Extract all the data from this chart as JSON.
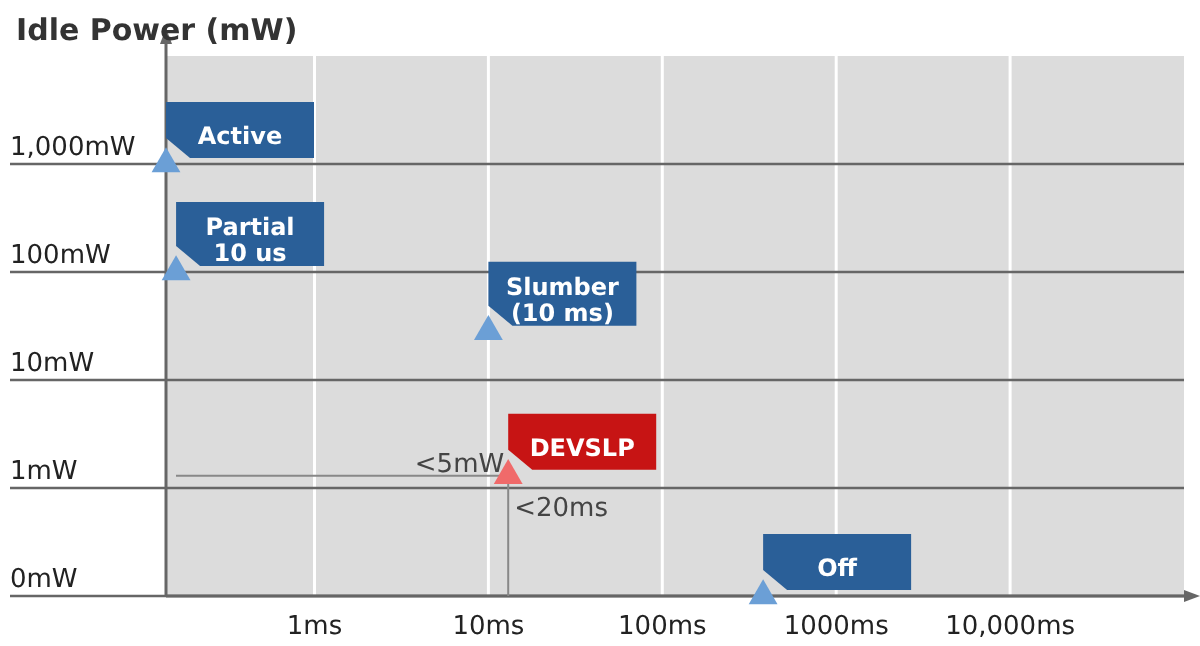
{
  "chart_data": {
    "type": "scatter",
    "title": "Idle Power (mW)",
    "log": "xy",
    "grid": true,
    "marker": "triangle",
    "xlim": [
      0.14,
      100000
    ],
    "xticks": [
      {
        "value": 1,
        "label": "1ms"
      },
      {
        "value": 10,
        "label": "10ms"
      },
      {
        "value": 100,
        "label": "100ms"
      },
      {
        "value": 1000,
        "label": "1000ms"
      },
      {
        "value": 10000,
        "label": "10,000ms"
      }
    ],
    "ylim": [
      0.1,
      10000
    ],
    "yticks": [
      {
        "value": 0.1,
        "label": "0mW"
      },
      {
        "value": 1,
        "label": "1mW"
      },
      {
        "value": 10,
        "label": "10mW"
      },
      {
        "value": 100,
        "label": "100mW"
      },
      {
        "value": 1000,
        "label": "1,000mW"
      }
    ],
    "series": [
      {
        "name": "Active",
        "color": "#6b9fd6",
        "x": [
          0.14
        ],
        "values": [
          1000
        ]
      },
      {
        "name": "Partial\n10 us",
        "color": "#6b9fd6",
        "x": [
          0.16
        ],
        "values": [
          100
        ]
      },
      {
        "name": "Slumber\n(10 ms)",
        "color": "#6b9fd6",
        "x": [
          10
        ],
        "values": [
          28
        ]
      },
      {
        "name": "DEVSLP",
        "color": "#f06a6a",
        "x": [
          13
        ],
        "values": [
          1.3
        ]
      },
      {
        "name": "Off",
        "color": "#6b9fd6",
        "x": [
          380
        ],
        "values": [
          0.1
        ]
      }
    ],
    "ref_lines": [
      {
        "axis": "y",
        "value": 1.3,
        "label": "<5mW"
      },
      {
        "axis": "x",
        "value": 13,
        "label": "<20ms"
      }
    ]
  }
}
